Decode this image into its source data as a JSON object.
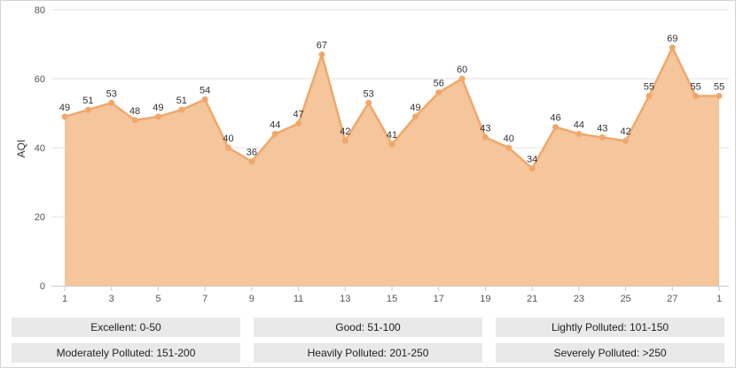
{
  "chart_data": {
    "type": "area",
    "ylabel": "AQI",
    "ylim": [
      0,
      80
    ],
    "y_ticks": [
      "0",
      "20",
      "40",
      "60",
      "80"
    ],
    "x_tick_labels": [
      "1",
      "3",
      "5",
      "7",
      "9",
      "11",
      "13",
      "15",
      "17",
      "19",
      "21",
      "23",
      "25",
      "27",
      "1"
    ],
    "x": [
      "1",
      "2",
      "3",
      "4",
      "5",
      "6",
      "7",
      "8",
      "9",
      "10",
      "11",
      "12",
      "13",
      "14",
      "15",
      "16",
      "17",
      "18",
      "19",
      "20",
      "21",
      "22",
      "23",
      "24",
      "25",
      "26",
      "27",
      "28",
      "1"
    ],
    "values": [
      49,
      51,
      53,
      48,
      49,
      51,
      54,
      40,
      36,
      44,
      47,
      67,
      42,
      53,
      41,
      49,
      56,
      60,
      43,
      40,
      34,
      46,
      44,
      43,
      42,
      55,
      69,
      55,
      55
    ],
    "grid": "horizontal",
    "colors": {
      "fill": "#f5c59c",
      "line": "#f0a86a",
      "grid": "#e3e3e3",
      "axis": "#cccccc"
    }
  },
  "legend": [
    {
      "label": "Excellent: 0-50"
    },
    {
      "label": "Good: 51-100"
    },
    {
      "label": "Lightly Polluted: 101-150"
    },
    {
      "label": "Moderately Polluted: 151-200"
    },
    {
      "label": "Heavily Polluted: 201-250"
    },
    {
      "label": "Severely Polluted: >250"
    }
  ]
}
